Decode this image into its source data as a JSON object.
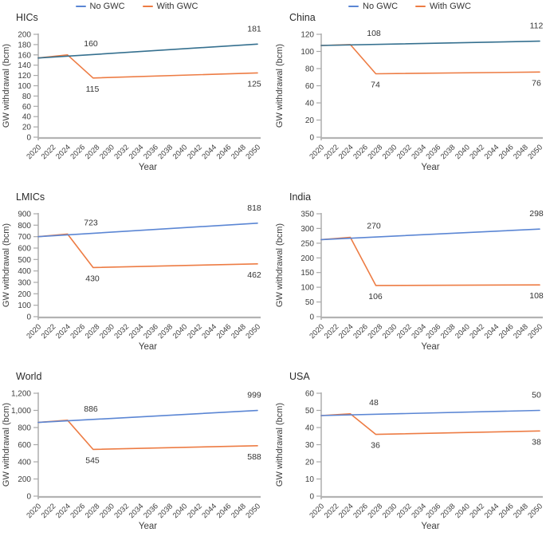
{
  "figure": {
    "legend": {
      "items": [
        {
          "label": "No GWC",
          "color": "#5b86d4"
        },
        {
          "label": "With GWC",
          "color": "#ed7c44"
        }
      ]
    },
    "colors": {
      "no_gwc_blue_teal": "#35708f",
      "no_gwc_blue": "#5b86d4",
      "with_gwc_orange": "#ed7c44",
      "y_axis": "#a9a9a9",
      "x_axis": "#b3b3b3",
      "tick_text": "#3f3f3f",
      "title_text": "#2b2b2b",
      "annotation_text": "#333333",
      "background": "#ffffff"
    },
    "x_axis_label": "Year",
    "y_axis_label": "GW withdrawal (bcm)"
  },
  "chart_data": [
    {
      "type": "line",
      "title": "HICs",
      "xlabel": "Year",
      "ylabel": "GW withdrawal (bcm)",
      "xlim": [
        2020,
        2050
      ],
      "ylim": [
        0,
        200
      ],
      "x_ticks": [
        "2020",
        "2022",
        "2024",
        "2026",
        "2028",
        "2030",
        "2032",
        "2034",
        "2036",
        "2038",
        "2040",
        "2042",
        "2044",
        "2046",
        "2048",
        "2050"
      ],
      "y_ticks": [
        0,
        20,
        40,
        60,
        80,
        100,
        120,
        140,
        160,
        180,
        200
      ],
      "y_tick_labels": [
        "0",
        "20",
        "40",
        "60",
        "80",
        "100",
        "120",
        "140",
        "160",
        "180",
        "200"
      ],
      "series": [
        {
          "name": "No GWC",
          "color": "#35708f",
          "points": [
            [
              2020,
              154
            ],
            [
              2050,
              181
            ]
          ]
        },
        {
          "name": "With GWC",
          "color": "#ed7c44",
          "points": [
            [
              2020,
              154
            ],
            [
              2024,
              160
            ],
            [
              2027.5,
              115
            ],
            [
              2050,
              125
            ]
          ]
        }
      ],
      "annotations": {
        "peak": {
          "value": 160,
          "text": "160"
        },
        "low": {
          "value": 115,
          "text": "115"
        },
        "no_gwc_end": {
          "value": 181,
          "text": "181"
        },
        "with_gwc_end": {
          "value": 125,
          "text": "125"
        }
      }
    },
    {
      "type": "line",
      "title": "China",
      "xlabel": "Year",
      "ylabel": "GW withdrawal (bcm)",
      "xlim": [
        2020,
        2050
      ],
      "ylim": [
        0,
        120
      ],
      "x_ticks": [
        "2020",
        "2022",
        "2024",
        "2026",
        "2028",
        "2030",
        "2032",
        "2034",
        "2036",
        "2038",
        "2040",
        "2042",
        "2044",
        "2046",
        "2048",
        "2050"
      ],
      "y_ticks": [
        0,
        20,
        40,
        60,
        80,
        100,
        120
      ],
      "y_tick_labels": [
        "0",
        "20",
        "40",
        "60",
        "80",
        "100",
        "120"
      ],
      "series": [
        {
          "name": "No GWC",
          "color": "#35708f",
          "points": [
            [
              2020,
              107
            ],
            [
              2050,
              112
            ]
          ]
        },
        {
          "name": "With GWC",
          "color": "#ed7c44",
          "points": [
            [
              2020,
              107
            ],
            [
              2024,
              108
            ],
            [
              2027.5,
              74
            ],
            [
              2050,
              76
            ]
          ]
        }
      ],
      "annotations": {
        "peak": {
          "value": 108,
          "text": "108"
        },
        "low": {
          "value": 74,
          "text": "74"
        },
        "no_gwc_end": {
          "value": 112,
          "text": "112"
        },
        "with_gwc_end": {
          "value": 76,
          "text": "76"
        }
      }
    },
    {
      "type": "line",
      "title": "LMICs",
      "xlabel": "Year",
      "ylabel": "GW withdrawal (bcm)",
      "xlim": [
        2020,
        2050
      ],
      "ylim": [
        0,
        900
      ],
      "x_ticks": [
        "2020",
        "2022",
        "2024",
        "2026",
        "2028",
        "2030",
        "2032",
        "2034",
        "2036",
        "2038",
        "2040",
        "2042",
        "2044",
        "2046",
        "2048",
        "2050"
      ],
      "y_ticks": [
        0,
        100,
        200,
        300,
        400,
        500,
        600,
        700,
        800,
        900
      ],
      "y_tick_labels": [
        "0",
        "100",
        "200",
        "300",
        "400",
        "500",
        "600",
        "700",
        "800",
        "900"
      ],
      "series": [
        {
          "name": "No GWC",
          "color": "#5b86d4",
          "points": [
            [
              2020,
              700
            ],
            [
              2050,
              818
            ]
          ]
        },
        {
          "name": "With GWC",
          "color": "#ed7c44",
          "points": [
            [
              2020,
              700
            ],
            [
              2024,
              723
            ],
            [
              2027.5,
              430
            ],
            [
              2050,
              462
            ]
          ]
        }
      ],
      "annotations": {
        "peak": {
          "value": 723,
          "text": "723"
        },
        "low": {
          "value": 430,
          "text": "430"
        },
        "no_gwc_end": {
          "value": 818,
          "text": "818"
        },
        "with_gwc_end": {
          "value": 462,
          "text": "462"
        }
      }
    },
    {
      "type": "line",
      "title": "India",
      "xlabel": "Year",
      "ylabel": "GW withdrawal (bcm)",
      "xlim": [
        2020,
        2050
      ],
      "ylim": [
        0,
        350
      ],
      "x_ticks": [
        "2020",
        "2022",
        "2024",
        "2026",
        "2028",
        "2030",
        "2032",
        "2034",
        "2036",
        "2038",
        "2040",
        "2042",
        "2044",
        "2046",
        "2048",
        "2050"
      ],
      "y_ticks": [
        0,
        50,
        100,
        150,
        200,
        250,
        300,
        350
      ],
      "y_tick_labels": [
        "0",
        "50",
        "100",
        "150",
        "200",
        "250",
        "300",
        "350"
      ],
      "series": [
        {
          "name": "No GWC",
          "color": "#5b86d4",
          "points": [
            [
              2020,
              262
            ],
            [
              2050,
              298
            ]
          ]
        },
        {
          "name": "With GWC",
          "color": "#ed7c44",
          "points": [
            [
              2020,
              262
            ],
            [
              2024,
              270
            ],
            [
              2027.5,
              106
            ],
            [
              2050,
              108
            ]
          ]
        }
      ],
      "annotations": {
        "peak": {
          "value": 270,
          "text": "270"
        },
        "low": {
          "value": 106,
          "text": "106"
        },
        "no_gwc_end": {
          "value": 298,
          "text": "298"
        },
        "with_gwc_end": {
          "value": 108,
          "text": "108"
        }
      }
    },
    {
      "type": "line",
      "title": "World",
      "xlabel": "Year",
      "ylabel": "GW withdrawal (bcm)",
      "xlim": [
        2020,
        2050
      ],
      "ylim": [
        0,
        1200
      ],
      "x_ticks": [
        "2020",
        "2022",
        "2024",
        "2026",
        "2028",
        "2030",
        "2032",
        "2034",
        "2036",
        "2038",
        "2040",
        "2042",
        "2044",
        "2046",
        "2048",
        "2050"
      ],
      "y_ticks": [
        0,
        200,
        400,
        600,
        800,
        1000,
        1200
      ],
      "y_tick_labels": [
        "0",
        "200",
        "400",
        "600",
        "800",
        "1,000",
        "1,200"
      ],
      "series": [
        {
          "name": "No GWC",
          "color": "#5b86d4",
          "points": [
            [
              2020,
              860
            ],
            [
              2050,
              999
            ]
          ]
        },
        {
          "name": "With GWC",
          "color": "#ed7c44",
          "points": [
            [
              2020,
              860
            ],
            [
              2024,
              886
            ],
            [
              2027.5,
              545
            ],
            [
              2050,
              588
            ]
          ]
        }
      ],
      "annotations": {
        "peak": {
          "value": 886,
          "text": "886"
        },
        "low": {
          "value": 545,
          "text": "545"
        },
        "no_gwc_end": {
          "value": 999,
          "text": "999"
        },
        "with_gwc_end": {
          "value": 588,
          "text": "588"
        }
      }
    },
    {
      "type": "line",
      "title": "USA",
      "xlabel": "Year",
      "ylabel": "GW withdrawal (bcm)",
      "xlim": [
        2020,
        2050
      ],
      "ylim": [
        0,
        60
      ],
      "x_ticks": [
        "2020",
        "2022",
        "2024",
        "2026",
        "2028",
        "2030",
        "2032",
        "2034",
        "2036",
        "2038",
        "2040",
        "2042",
        "2044",
        "2046",
        "2048",
        "2050"
      ],
      "y_ticks": [
        0,
        10,
        20,
        30,
        40,
        50,
        60
      ],
      "y_tick_labels": [
        "0",
        "10",
        "20",
        "30",
        "40",
        "50",
        "60"
      ],
      "series": [
        {
          "name": "No GWC",
          "color": "#5b86d4",
          "points": [
            [
              2020,
              47
            ],
            [
              2050,
              50
            ]
          ]
        },
        {
          "name": "With GWC",
          "color": "#ed7c44",
          "points": [
            [
              2020,
              47
            ],
            [
              2024,
              48
            ],
            [
              2027.5,
              36
            ],
            [
              2050,
              38
            ]
          ]
        }
      ],
      "annotations": {
        "peak": {
          "value": 48,
          "text": "48"
        },
        "low": {
          "value": 36,
          "text": "36"
        },
        "no_gwc_end": {
          "value": 50,
          "text": "50"
        },
        "with_gwc_end": {
          "value": 38,
          "text": "38"
        }
      }
    }
  ]
}
